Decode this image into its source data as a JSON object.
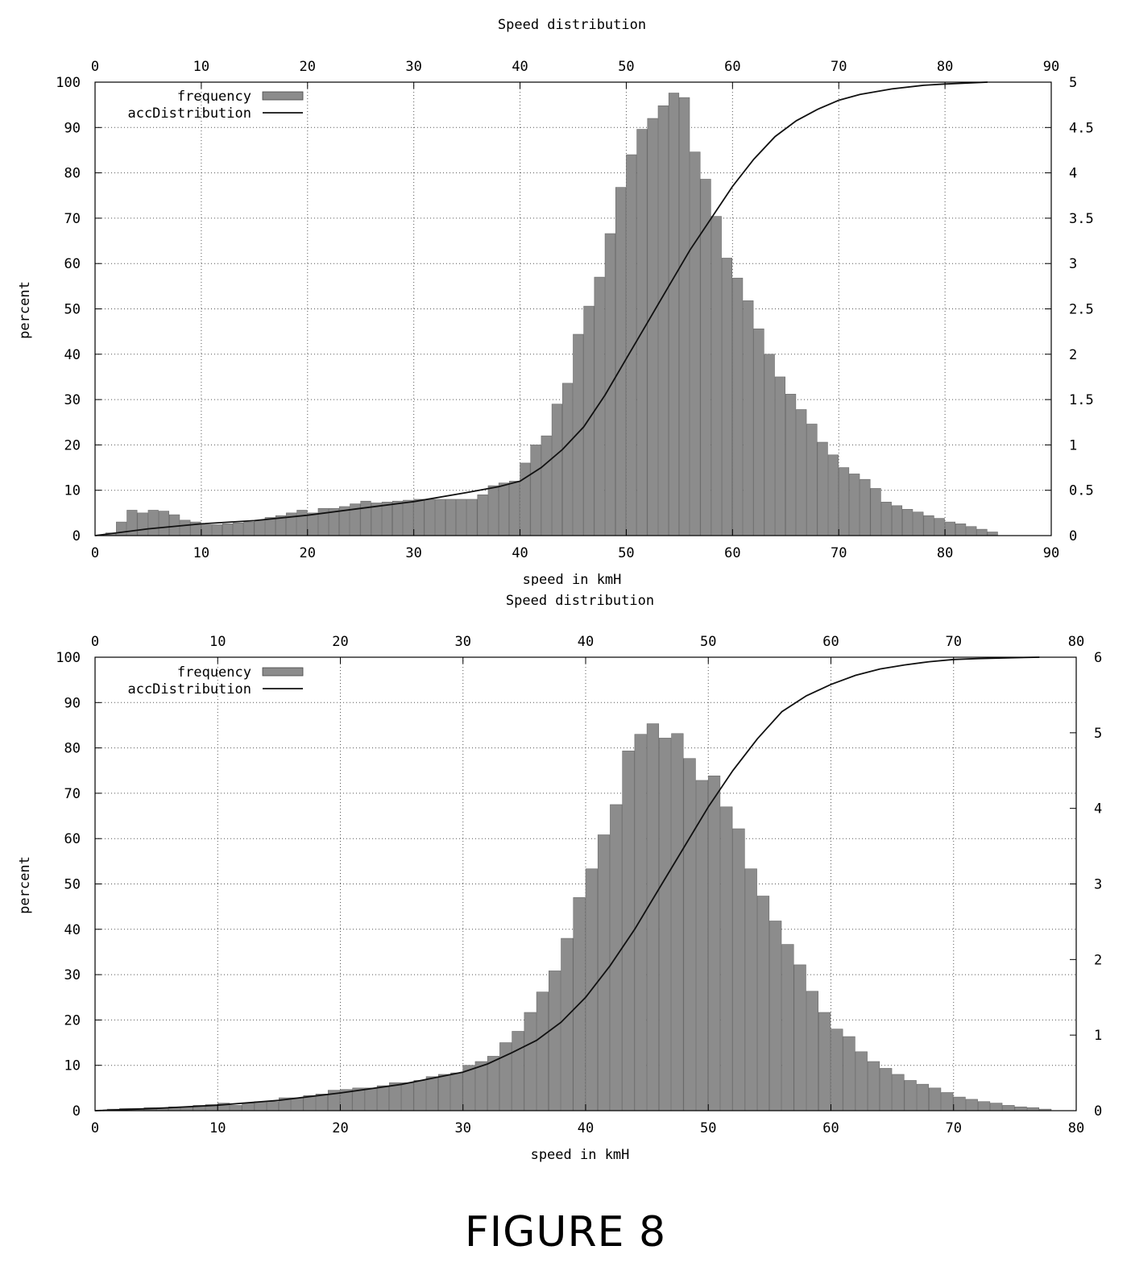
{
  "figure_label": "FIGURE 8",
  "colors": {
    "bar_fill": "#8c8c8c",
    "line": "#111111",
    "grid": "#555555"
  },
  "chart_data": [
    {
      "type": "bar",
      "title": "Speed distribution",
      "xlabel": "speed in kmH",
      "ylabel": "percent",
      "xlim": [
        0,
        90
      ],
      "ylim": [
        0,
        100
      ],
      "y2lim": [
        0,
        5
      ],
      "x_ticks": [
        0,
        10,
        20,
        30,
        40,
        50,
        60,
        70,
        80,
        90
      ],
      "y_ticks": [
        0,
        10,
        20,
        30,
        40,
        50,
        60,
        70,
        80,
        90,
        100
      ],
      "y2_ticks": [
        "0",
        "0.5",
        "1",
        "1.5",
        "2",
        "2.5",
        "3",
        "3.5",
        "4",
        "4.5",
        "5"
      ],
      "grid": true,
      "legend_position": "top-left",
      "series": [
        {
          "name": "frequency",
          "type": "bar",
          "axis": "y2",
          "bin_width": 1,
          "x": [
            1,
            2,
            3,
            4,
            5,
            6,
            7,
            8,
            9,
            10,
            11,
            12,
            13,
            14,
            15,
            16,
            17,
            18,
            19,
            20,
            21,
            22,
            23,
            24,
            25,
            26,
            27,
            28,
            29,
            30,
            31,
            32,
            33,
            34,
            35,
            36,
            37,
            38,
            39,
            40,
            41,
            42,
            43,
            44,
            45,
            46,
            47,
            48,
            49,
            50,
            51,
            52,
            53,
            54,
            55,
            56,
            57,
            58,
            59,
            60,
            61,
            62,
            63,
            64,
            65,
            66,
            67,
            68,
            69,
            70,
            71,
            72,
            73,
            74,
            75,
            76,
            77,
            78,
            79,
            80,
            81,
            82,
            83,
            84
          ],
          "values": [
            0.03,
            0.15,
            0.28,
            0.25,
            0.28,
            0.27,
            0.23,
            0.17,
            0.15,
            0.12,
            0.12,
            0.13,
            0.14,
            0.15,
            0.17,
            0.2,
            0.22,
            0.25,
            0.28,
            0.25,
            0.3,
            0.3,
            0.32,
            0.35,
            0.38,
            0.36,
            0.37,
            0.38,
            0.39,
            0.4,
            0.4,
            0.4,
            0.4,
            0.4,
            0.4,
            0.45,
            0.55,
            0.58,
            0.6,
            0.8,
            1.0,
            1.1,
            1.45,
            1.68,
            2.22,
            2.53,
            2.85,
            3.33,
            3.84,
            4.2,
            4.48,
            4.6,
            4.74,
            4.88,
            4.83,
            4.23,
            3.93,
            3.52,
            3.06,
            2.84,
            2.59,
            2.28,
            2.0,
            1.75,
            1.56,
            1.39,
            1.23,
            1.03,
            0.89,
            0.75,
            0.68,
            0.62,
            0.52,
            0.37,
            0.33,
            0.29,
            0.26,
            0.22,
            0.19,
            0.15,
            0.13,
            0.1,
            0.07,
            0.04
          ]
        },
        {
          "name": "accDistribution",
          "type": "line",
          "axis": "y",
          "x": [
            0,
            5,
            10,
            15,
            20,
            25,
            30,
            35,
            38,
            40,
            42,
            44,
            46,
            48,
            50,
            52,
            54,
            56,
            58,
            60,
            62,
            64,
            66,
            68,
            70,
            72,
            75,
            78,
            80,
            84
          ],
          "values": [
            0,
            1.5,
            2.6,
            3.3,
            4.5,
            6,
            7.5,
            9.5,
            10.8,
            12,
            15,
            19,
            24,
            31,
            39,
            47,
            55,
            63,
            70,
            77,
            83,
            88,
            91.5,
            94,
            96,
            97.3,
            98.5,
            99.3,
            99.6,
            100
          ]
        }
      ]
    },
    {
      "type": "bar",
      "title": "Speed distribution",
      "xlabel": "speed in kmH",
      "ylabel": "percent",
      "xlim": [
        0,
        80
      ],
      "ylim": [
        0,
        100
      ],
      "y2lim": [
        0,
        6
      ],
      "x_ticks": [
        0,
        10,
        20,
        30,
        40,
        50,
        60,
        70,
        80
      ],
      "y_ticks": [
        0,
        10,
        20,
        30,
        40,
        50,
        60,
        70,
        80,
        90,
        100
      ],
      "y2_ticks": [
        "0",
        "1",
        "2",
        "3",
        "4",
        "5",
        "6"
      ],
      "grid": true,
      "legend_position": "top-left",
      "series": [
        {
          "name": "frequency",
          "type": "bar",
          "axis": "y2",
          "bin_width": 1,
          "x": [
            1,
            2,
            3,
            4,
            5,
            6,
            7,
            8,
            9,
            10,
            11,
            12,
            13,
            14,
            15,
            16,
            17,
            18,
            19,
            20,
            21,
            22,
            23,
            24,
            25,
            26,
            27,
            28,
            29,
            30,
            31,
            32,
            33,
            34,
            35,
            36,
            37,
            38,
            39,
            40,
            41,
            42,
            43,
            44,
            45,
            46,
            47,
            48,
            49,
            50,
            51,
            52,
            53,
            54,
            55,
            56,
            57,
            58,
            59,
            60,
            61,
            62,
            63,
            64,
            65,
            66,
            67,
            68,
            69,
            70,
            71,
            72,
            73,
            74,
            75,
            76,
            77
          ],
          "values": [
            0.02,
            0.03,
            0.03,
            0.04,
            0.04,
            0.05,
            0.05,
            0.07,
            0.08,
            0.1,
            0.07,
            0.1,
            0.12,
            0.12,
            0.17,
            0.17,
            0.2,
            0.22,
            0.27,
            0.28,
            0.3,
            0.3,
            0.33,
            0.37,
            0.37,
            0.4,
            0.45,
            0.48,
            0.5,
            0.6,
            0.65,
            0.72,
            0.9,
            1.05,
            1.3,
            1.57,
            1.85,
            2.28,
            2.82,
            3.2,
            3.65,
            4.05,
            4.76,
            4.98,
            5.12,
            4.93,
            4.99,
            4.66,
            4.37,
            4.43,
            4.02,
            3.73,
            3.2,
            2.84,
            2.51,
            2.2,
            1.93,
            1.58,
            1.3,
            1.08,
            0.98,
            0.78,
            0.65,
            0.56,
            0.48,
            0.4,
            0.35,
            0.3,
            0.24,
            0.18,
            0.15,
            0.12,
            0.1,
            0.07,
            0.05,
            0.04,
            0.02
          ]
        },
        {
          "name": "accDistribution",
          "type": "line",
          "axis": "y",
          "x": [
            0,
            5,
            10,
            15,
            20,
            25,
            30,
            32,
            34,
            36,
            38,
            40,
            42,
            44,
            46,
            48,
            50,
            52,
            54,
            56,
            58,
            60,
            62,
            64,
            66,
            68,
            70,
            72,
            75,
            77
          ],
          "values": [
            0,
            0.5,
            1.2,
            2.3,
            3.9,
            5.8,
            8.5,
            10.3,
            12.8,
            15.5,
            19.5,
            25,
            32,
            40,
            49,
            58,
            67,
            75,
            82,
            88,
            91.5,
            94,
            96,
            97.4,
            98.3,
            99,
            99.5,
            99.7,
            99.9,
            100
          ]
        }
      ]
    }
  ]
}
